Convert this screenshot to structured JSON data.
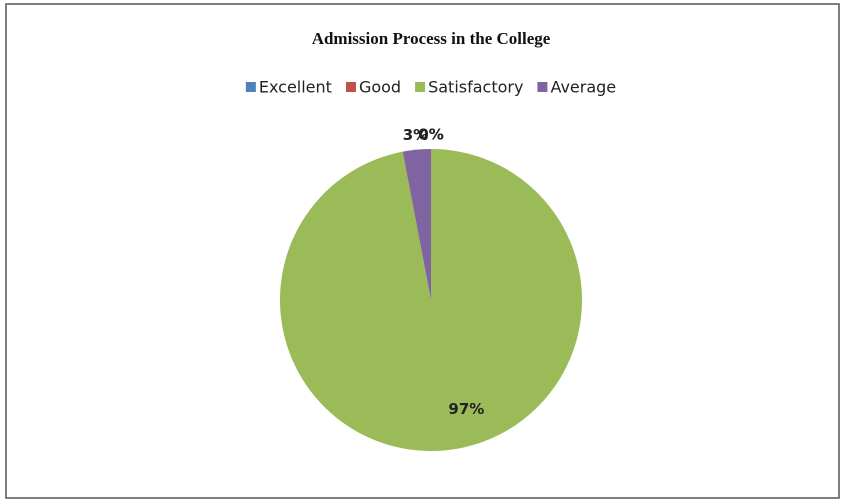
{
  "chart_data": {
    "type": "pie",
    "title": "Admission Process in the College",
    "categories": [
      "Excellent",
      "Good",
      "Satisfactory",
      "Average"
    ],
    "values": [
      0,
      0,
      97,
      3
    ],
    "value_labels": [
      "0%",
      "0%",
      "97%",
      "3%"
    ],
    "colors": [
      "#4f81bd",
      "#c0504d",
      "#9bbb59",
      "#8064a2"
    ],
    "legend": "top"
  }
}
